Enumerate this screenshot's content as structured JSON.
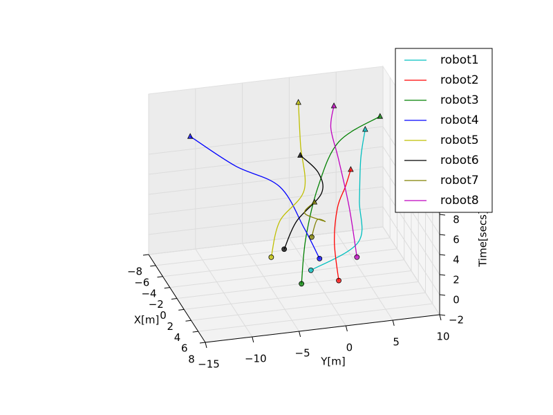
{
  "chart_data": {
    "type": "line3d",
    "xlabel": "X[m]",
    "ylabel": "Y[m]",
    "zlabel": "Time[secs]",
    "xlim": [
      -8,
      8
    ],
    "ylim": [
      -15,
      10
    ],
    "zlim": [
      -2,
      14
    ],
    "xticks": [
      {
        "value": -8,
        "label": "−8"
      },
      {
        "value": -6,
        "label": "−6"
      },
      {
        "value": -4,
        "label": "−4"
      },
      {
        "value": -2,
        "label": "−2"
      },
      0,
      2,
      4,
      6,
      8
    ],
    "yticks": [
      {
        "value": -15,
        "label": "−15"
      },
      {
        "value": -10,
        "label": "−10"
      },
      {
        "value": -5,
        "label": "−5"
      },
      0,
      5,
      10
    ],
    "zticks": [
      {
        "value": -2,
        "label": "−2"
      },
      0,
      2,
      4,
      6,
      8
    ],
    "grid": true,
    "legend": "upper right",
    "series": [
      {
        "name": "robot1",
        "color": "#00bfbf",
        "x": [
          1.3,
          0.9,
          0.7,
          -1.3,
          -1.1
        ],
        "y": [
          -1.2,
          4.0,
          4.2,
          5.1,
          5.5
        ],
        "z": [
          0,
          2,
          6,
          9,
          12
        ]
      },
      {
        "name": "robot2",
        "color": "#ff0000",
        "x": [
          3.6,
          2.1,
          1.4,
          3.1,
          5.4
        ],
        "y": [
          0.9,
          1.0,
          1.6,
          1.8,
          1.5
        ],
        "z": [
          0,
          3,
          6,
          9,
          12
        ]
      },
      {
        "name": "robot3",
        "color": "#008000",
        "x": [
          3.4,
          0.9,
          -2.5,
          -4.6,
          -3.0
        ],
        "y": [
          -3.0,
          -1.6,
          1.0,
          4.0,
          7.8
        ],
        "z": [
          0,
          3,
          6,
          9,
          12
        ]
      },
      {
        "name": "robot4",
        "color": "#0000ff",
        "x": [
          -0.5,
          -0.9,
          -3.3,
          -2.6,
          -3.4
        ],
        "y": [
          0.4,
          -1.1,
          -2.8,
          -7.8,
          -12.3
        ],
        "z": [
          0,
          3,
          6,
          9,
          12
        ]
      },
      {
        "name": "robot5",
        "color": "#bfbf00",
        "x": [
          -1.7,
          -2.5,
          -2.2,
          -4.8,
          -7.0
        ],
        "y": [
          -4.3,
          -3.1,
          -0.6,
          0.0,
          0.6
        ],
        "z": [
          0,
          3,
          6,
          9,
          12
        ]
      },
      {
        "name": "robot6",
        "color": "#000000",
        "x": [
          -2.8,
          -2.2,
          -1.3,
          0.2,
          2.0
        ],
        "y": [
          -2.5,
          -1.4,
          0.9,
          0.0,
          -2.6
        ],
        "z": [
          0,
          3,
          6,
          9,
          12
        ]
      },
      {
        "name": "robot7",
        "color": "#808000",
        "x": [
          -4.3,
          -2.0,
          1.8,
          5.1,
          6.8
        ],
        "y": [
          1.0,
          0.7,
          0.1,
          -3.3,
          -2.9
        ],
        "z": [
          0,
          3,
          5,
          8,
          10
        ]
      },
      {
        "name": "robot8",
        "color": "#bf00bf",
        "x": [
          0.0,
          -3.5,
          -6.8,
          -7.1,
          -5.7
        ],
        "y": [
          4.2,
          4.7,
          4.8,
          4.1,
          3.9
        ],
        "z": [
          0,
          3,
          6,
          9,
          12
        ]
      }
    ]
  }
}
